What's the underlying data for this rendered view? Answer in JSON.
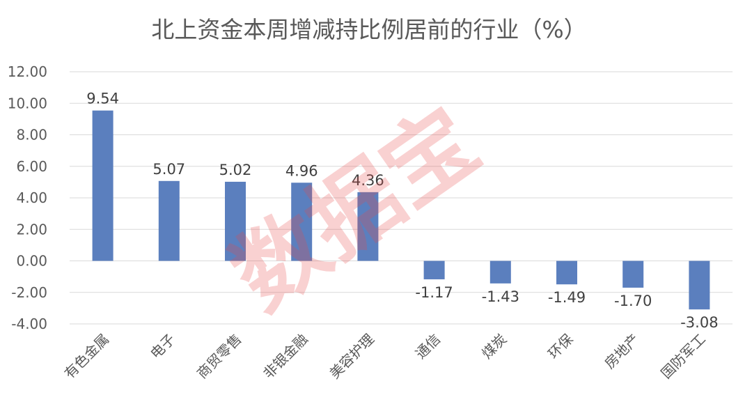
{
  "chart_data": {
    "type": "bar",
    "title": "北上资金本周增减持比例居前的行业（%）",
    "categories": [
      "有色金属",
      "电子",
      "商贸零售",
      "非银金融",
      "美容护理",
      "通信",
      "煤炭",
      "环保",
      "房地产",
      "国防军工"
    ],
    "values": [
      9.54,
      5.07,
      5.02,
      4.96,
      4.36,
      -1.17,
      -1.43,
      -1.49,
      -1.7,
      -3.08
    ],
    "data_labels": [
      "9.54",
      "5.07",
      "5.02",
      "4.96",
      "4.36",
      "-1.17",
      "-1.43",
      "-1.49",
      "-1.70",
      "-3.08"
    ],
    "ylim": [
      -4,
      12
    ],
    "yticks": [
      "12.00",
      "10.00",
      "8.00",
      "6.00",
      "4.00",
      "2.00",
      "0.00",
      "-2.00",
      "-4.00"
    ],
    "xlabel": "",
    "ylabel": "",
    "grid": true,
    "bar_color": "#5b7fbe",
    "watermark": "数据宝"
  }
}
